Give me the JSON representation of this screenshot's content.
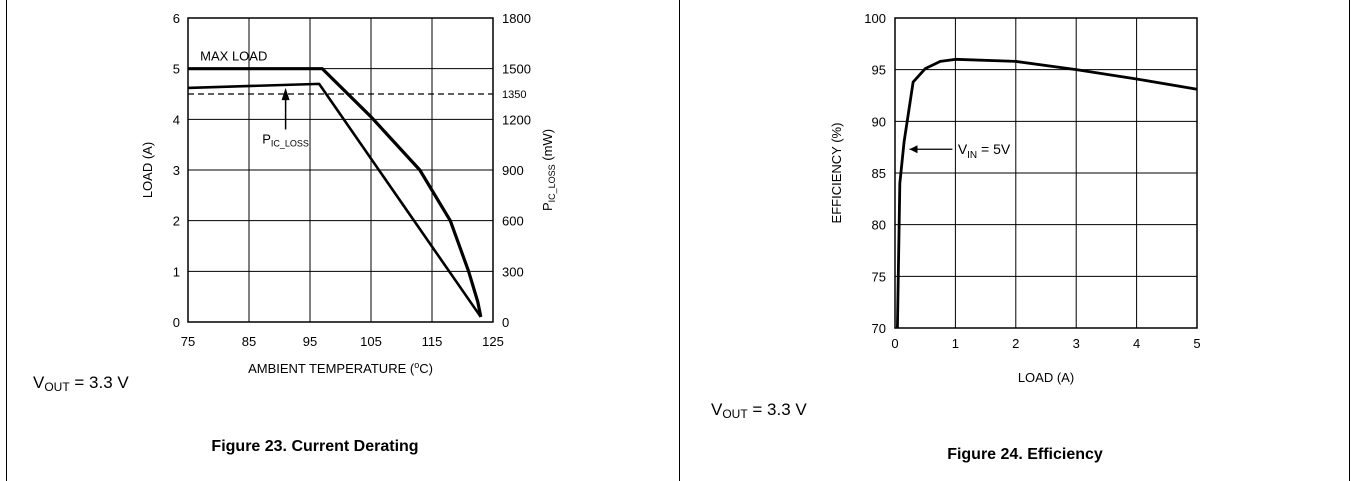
{
  "figures": [
    {
      "caption": "Figure 23. Current Derating",
      "note": {
        "prefix": "V",
        "sub": "OUT",
        "suffix": " = 3.3 V"
      }
    },
    {
      "caption": "Figure 24. Efficiency",
      "note": {
        "prefix": "V",
        "sub": "OUT",
        "suffix": " = 3.3 V"
      }
    }
  ],
  "chart_data": [
    {
      "type": "line",
      "xlabel_prefix": "AMBIENT TEMPERATURE (",
      "xlabel_sup": "o",
      "xlabel_suffix": "C)",
      "ylabel": "LOAD (A)",
      "y2label_prefix": "P",
      "y2label_sub": "IC_LOSS",
      "y2label_suffix": " (mW)",
      "xlim": [
        75,
        125
      ],
      "ylim": [
        0,
        6
      ],
      "y2lim": [
        0,
        1800
      ],
      "x_ticks": [
        75,
        85,
        95,
        105,
        115,
        125
      ],
      "y_ticks": [
        0,
        1,
        2,
        3,
        4,
        5,
        6
      ],
      "y2_ticks": [
        0,
        300,
        600,
        900,
        1200,
        1500,
        1800
      ],
      "y2_extra_tick": 1350,
      "grid": true,
      "annotations": {
        "max_load": "MAX LOAD",
        "ploss_prefix": "P",
        "ploss_sub": "IC_LOSS"
      },
      "series": [
        {
          "name": "MAX LOAD",
          "style": "thick",
          "points": [
            [
              75,
              5.0
            ],
            [
              97,
              5.0
            ],
            [
              105,
              4.05
            ],
            [
              113,
              3.0
            ],
            [
              118,
              2.0
            ],
            [
              121,
              1.0
            ],
            [
              122.5,
              0.4
            ],
            [
              123,
              0.1
            ]
          ]
        },
        {
          "style": "solid",
          "points": [
            [
              75,
              4.62
            ],
            [
              96.5,
              4.7
            ],
            [
              123,
              0.1
            ]
          ]
        },
        {
          "style": "dashed",
          "points": [
            [
              75,
              4.5
            ],
            [
              125,
              4.5
            ]
          ]
        }
      ]
    },
    {
      "type": "line",
      "xlabel": "LOAD (A)",
      "ylabel": "EFFICIENCY (%)",
      "xlim": [
        0,
        5
      ],
      "ylim": [
        70,
        100
      ],
      "x_ticks": [
        0,
        1,
        2,
        3,
        4,
        5
      ],
      "y_ticks": [
        70,
        75,
        80,
        85,
        90,
        95,
        100
      ],
      "grid": true,
      "annotations": {
        "vin_prefix": "V",
        "vin_sub": "IN",
        "vin_suffix": " = 5V"
      },
      "series": [
        {
          "name": "V_IN = 5V",
          "points": [
            [
              0.04,
              70
            ],
            [
              0.08,
              84
            ],
            [
              0.15,
              88
            ],
            [
              0.3,
              93.8
            ],
            [
              0.5,
              95.1
            ],
            [
              0.75,
              95.8
            ],
            [
              1.0,
              96.0
            ],
            [
              2.0,
              95.8
            ],
            [
              3.0,
              95.0
            ],
            [
              4.0,
              94.1
            ],
            [
              5.0,
              93.1
            ]
          ]
        }
      ]
    }
  ]
}
